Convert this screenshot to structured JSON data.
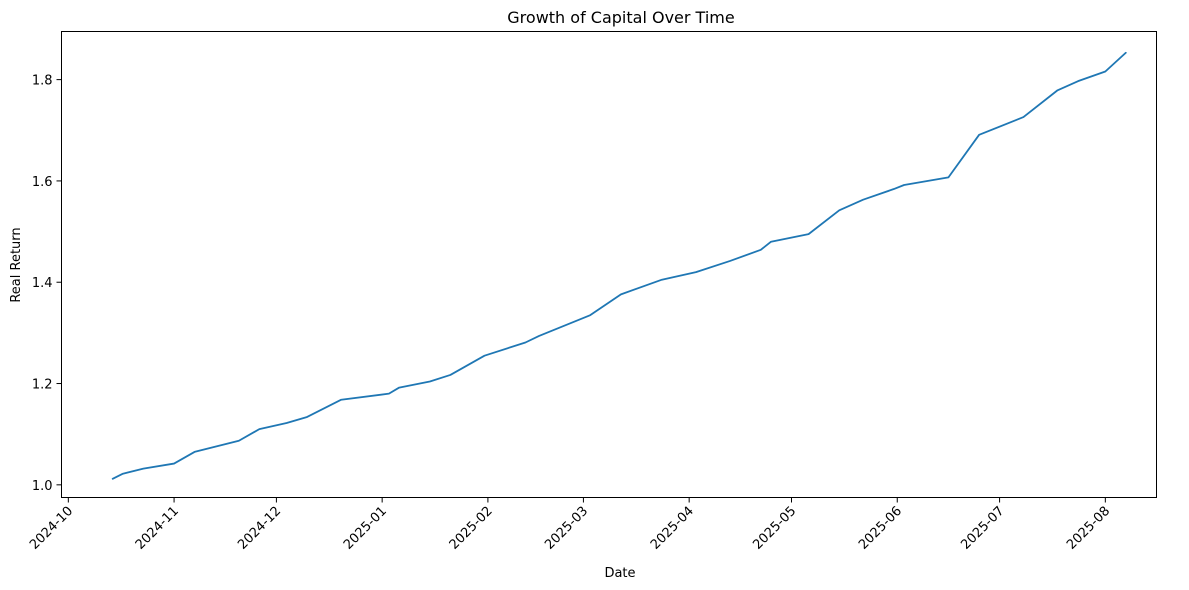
{
  "chart_data": {
    "type": "line",
    "title": "Growth of Capital Over Time",
    "xlabel": "Date",
    "ylabel": "Real Return",
    "x_axis_type": "date",
    "xlim": [
      "2024-09-29",
      "2025-08-16"
    ],
    "ylim": [
      0.975,
      1.895
    ],
    "grid": false,
    "legend": "none",
    "line_color": "#1f77b4",
    "x_ticks": [
      {
        "date": "2024-10-01",
        "label": "2024-10"
      },
      {
        "date": "2024-11-01",
        "label": "2024-11"
      },
      {
        "date": "2024-12-01",
        "label": "2024-12"
      },
      {
        "date": "2025-01-01",
        "label": "2025-01"
      },
      {
        "date": "2025-02-01",
        "label": "2025-02"
      },
      {
        "date": "2025-03-01",
        "label": "2025-03"
      },
      {
        "date": "2025-04-01",
        "label": "2025-04"
      },
      {
        "date": "2025-05-01",
        "label": "2025-05"
      },
      {
        "date": "2025-06-01",
        "label": "2025-06"
      },
      {
        "date": "2025-07-01",
        "label": "2025-07"
      },
      {
        "date": "2025-08-01",
        "label": "2025-08"
      }
    ],
    "y_ticks": [
      {
        "value": 1.0,
        "label": "1.0"
      },
      {
        "value": 1.2,
        "label": "1.2"
      },
      {
        "value": 1.4,
        "label": "1.4"
      },
      {
        "value": 1.6,
        "label": "1.6"
      },
      {
        "value": 1.8,
        "label": "1.8"
      }
    ],
    "series": [
      {
        "x": [
          "2024-10-14",
          "2024-10-17",
          "2024-10-23",
          "2024-11-01",
          "2024-11-07",
          "2024-11-20",
          "2024-11-26",
          "2024-12-04",
          "2024-12-10",
          "2024-12-20",
          "2025-01-03",
          "2025-01-06",
          "2025-01-15",
          "2025-01-21",
          "2025-01-31",
          "2025-02-12",
          "2025-02-16",
          "2025-03-03",
          "2025-03-12",
          "2025-03-24",
          "2025-04-03",
          "2025-04-13",
          "2025-04-22",
          "2025-04-25",
          "2025-05-06",
          "2025-05-15",
          "2025-05-22",
          "2025-05-31",
          "2025-06-03",
          "2025-06-16",
          "2025-06-25",
          "2025-07-08",
          "2025-07-18",
          "2025-07-24",
          "2025-08-01",
          "2025-08-07"
        ],
        "y": [
          1.012,
          1.022,
          1.032,
          1.042,
          1.065,
          1.087,
          1.11,
          1.122,
          1.134,
          1.168,
          1.18,
          1.192,
          1.204,
          1.217,
          1.255,
          1.281,
          1.294,
          1.335,
          1.376,
          1.405,
          1.42,
          1.442,
          1.464,
          1.48,
          1.495,
          1.542,
          1.563,
          1.584,
          1.592,
          1.607,
          1.691,
          1.726,
          1.779,
          1.797,
          1.816,
          1.853
        ]
      }
    ]
  }
}
